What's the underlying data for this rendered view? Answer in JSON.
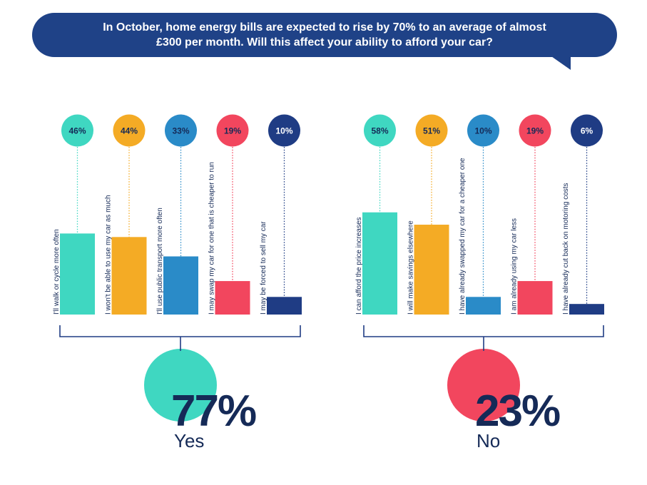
{
  "banner": {
    "line1": "In October, home energy bills are expected to rise by 70% to an average of almost",
    "line2": "£300 per month. Will this affect your ability to afford your car?"
  },
  "colors": {
    "banner": "#1f4287",
    "teal": "#3fd7c1",
    "orange": "#f4ab25",
    "blue": "#2a8bc8",
    "red": "#f2465e",
    "navy": "#1f3c84",
    "text_dark": "#152a57"
  },
  "chart_data": [
    {
      "type": "bar",
      "group": "Yes",
      "total_percent": "77%",
      "total_label": "Yes",
      "total_color": "#3fd7c1",
      "categories": [
        "I'll walk or cycle more often",
        "I won't be able to use my car as much",
        "I'll use public transport more often",
        "I may swap my car for one that is cheaper to run",
        "I may be forced to sell my car"
      ],
      "values": [
        46,
        44,
        33,
        19,
        10
      ],
      "value_labels": [
        "46%",
        "44%",
        "33%",
        "19%",
        "10%"
      ],
      "colors": [
        "#3fd7c1",
        "#f4ab25",
        "#2a8bc8",
        "#f2465e",
        "#1f3c84"
      ],
      "ylim": [
        0,
        100
      ]
    },
    {
      "type": "bar",
      "group": "No",
      "total_percent": "23%",
      "total_label": "No",
      "total_color": "#f2465e",
      "categories": [
        "I can afford the price increases",
        "I will make savings elsewhere",
        "I have already swapped my car for a cheaper one",
        "I am already using my car less",
        "I have already cut back on motoring costs"
      ],
      "values": [
        58,
        51,
        10,
        19,
        6
      ],
      "value_labels": [
        "58%",
        "51%",
        "10%",
        "19%",
        "6%"
      ],
      "colors": [
        "#3fd7c1",
        "#f4ab25",
        "#2a8bc8",
        "#f2465e",
        "#1f3c84"
      ],
      "ylim": [
        0,
        100
      ]
    }
  ]
}
